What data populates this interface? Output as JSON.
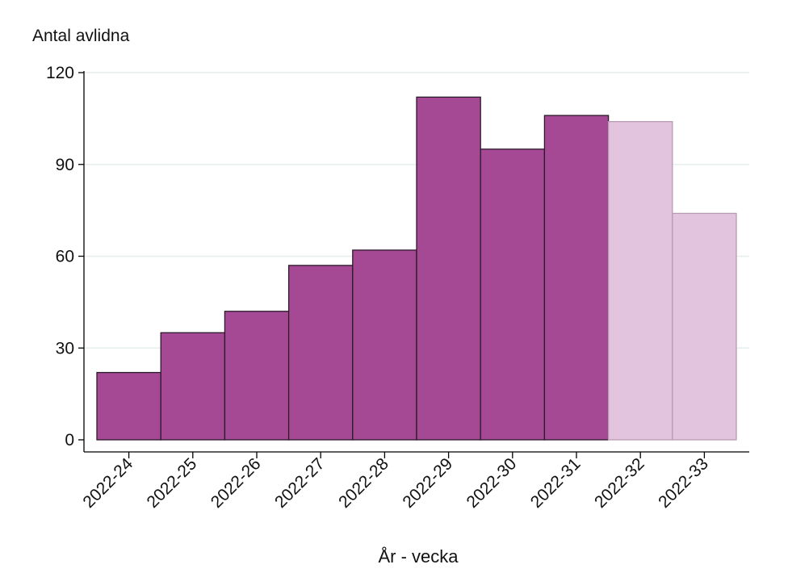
{
  "chart_data": {
    "type": "bar",
    "title": "",
    "ylabel": "Antal avlidna",
    "xlabel": "År - vecka",
    "ylim": [
      0,
      120
    ],
    "yticks": [
      0,
      30,
      60,
      90,
      120
    ],
    "grid": true,
    "categories": [
      "2022-24",
      "2022-25",
      "2022-26",
      "2022-27",
      "2022-28",
      "2022-29",
      "2022-30",
      "2022-31",
      "2022-32",
      "2022-33"
    ],
    "values": [
      22,
      35,
      42,
      57,
      62,
      112,
      95,
      106,
      104,
      74
    ],
    "preliminary": [
      false,
      false,
      false,
      false,
      false,
      false,
      false,
      false,
      true,
      true
    ],
    "colors": {
      "bar": "#a64995",
      "bar_border": "#2b1a2a",
      "bar_preliminary": "#e3c4de",
      "bar_preliminary_border": "#b89ab3",
      "grid": "#e6eeee",
      "axis": "#000000"
    }
  }
}
